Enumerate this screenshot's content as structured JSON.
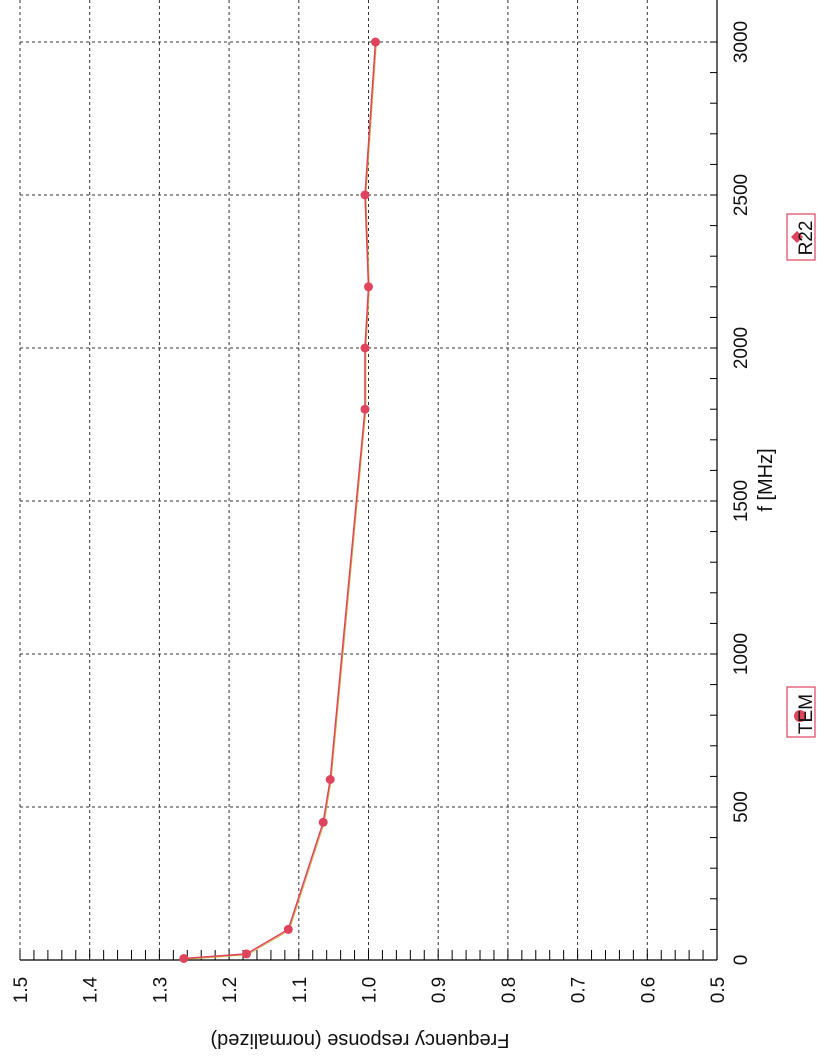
{
  "chart_data": {
    "type": "line",
    "title": "",
    "xlabel": "f [MHz]",
    "ylabel": "Frequency response (normalized)",
    "xlim": [
      0,
      3000
    ],
    "ylim": [
      0.5,
      1.5
    ],
    "x_ticks": [
      "0",
      "500",
      "1000",
      "1500",
      "2000",
      "2500",
      "3000"
    ],
    "y_ticks": [
      "0.5",
      "0.6",
      "0.7",
      "0.8",
      "0.9",
      "1.0",
      "1.1",
      "1.2",
      "1.3",
      "1.4",
      "1.5"
    ],
    "grid": true,
    "legend": [
      "TEM",
      "R22"
    ],
    "series": [
      {
        "name": "TEM",
        "x": [
          5,
          20,
          100,
          450,
          590,
          1800,
          2000,
          2200,
          2500,
          3000
        ],
        "values": [
          1.265,
          1.175,
          1.115,
          1.065,
          1.055,
          1.005,
          1.005,
          1.0,
          1.005,
          0.99
        ]
      }
    ]
  }
}
